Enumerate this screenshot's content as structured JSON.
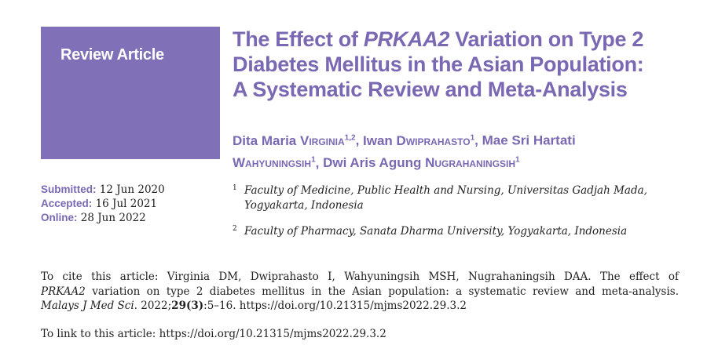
{
  "badge": {
    "part1": "Review ",
    "part2": "Article"
  },
  "title": {
    "line1_pre": "The Effect of ",
    "line1_gene": "PRKAA2",
    "line1_post": " Variation on Type 2",
    "line2": "Diabetes Mellitus in the Asian Population:",
    "line3": "A Systematic Review and Meta-Analysis"
  },
  "authors": {
    "a1_first": "Dita Maria ",
    "a1_last": "Virginia",
    "a1_sup": "1,2",
    "a2_first": "Iwan ",
    "a2_last": "Dwiprahasto",
    "a2_sup": "1",
    "a3_first": "Mae Sri Hartati",
    "a3_last": "Wahyuningsih",
    "a3_sup": "1",
    "a4_first": "Dwi Aris Agung ",
    "a4_last": "Nugrahaningsih",
    "a4_sup": "1"
  },
  "dates": {
    "submitted_label": "Submitted:",
    "submitted_value": "12 Jun 2020",
    "accepted_label": "Accepted:",
    "accepted_value": "16 Jul 2021",
    "online_label": "Online:",
    "online_value": "28 Jun 2022"
  },
  "affiliations": [
    {
      "num": "1",
      "line1": "Faculty of Medicine, Public Health and Nursing, Universitas Gadjah Mada,",
      "line2": "Yogyakarta, Indonesia"
    },
    {
      "num": "2",
      "line1": "Faculty of Pharmacy, Sanata Dharma University, Yogyakarta, Indonesia"
    }
  ],
  "citation": {
    "line1": "To cite this article: Virginia DM, Dwiprahasto I, Wahyuningsih MSH, Nugrahaningsih DAA. The effect of",
    "gene": "PRKAA2",
    "line2_rest": " variation on type 2 diabetes mellitus in the Asian population: a systematic review and meta-analysis.",
    "journal": "Malays J Med Sci",
    "year": ". 2022;",
    "volume": "29",
    "issue": "(3)",
    "pages_doi": ":5–16. https://doi.org/10.21315/mjms2022.29.3.2"
  },
  "link": {
    "text": "To link to this article: https://doi.org/10.21315/mjms2022.29.3.2"
  }
}
